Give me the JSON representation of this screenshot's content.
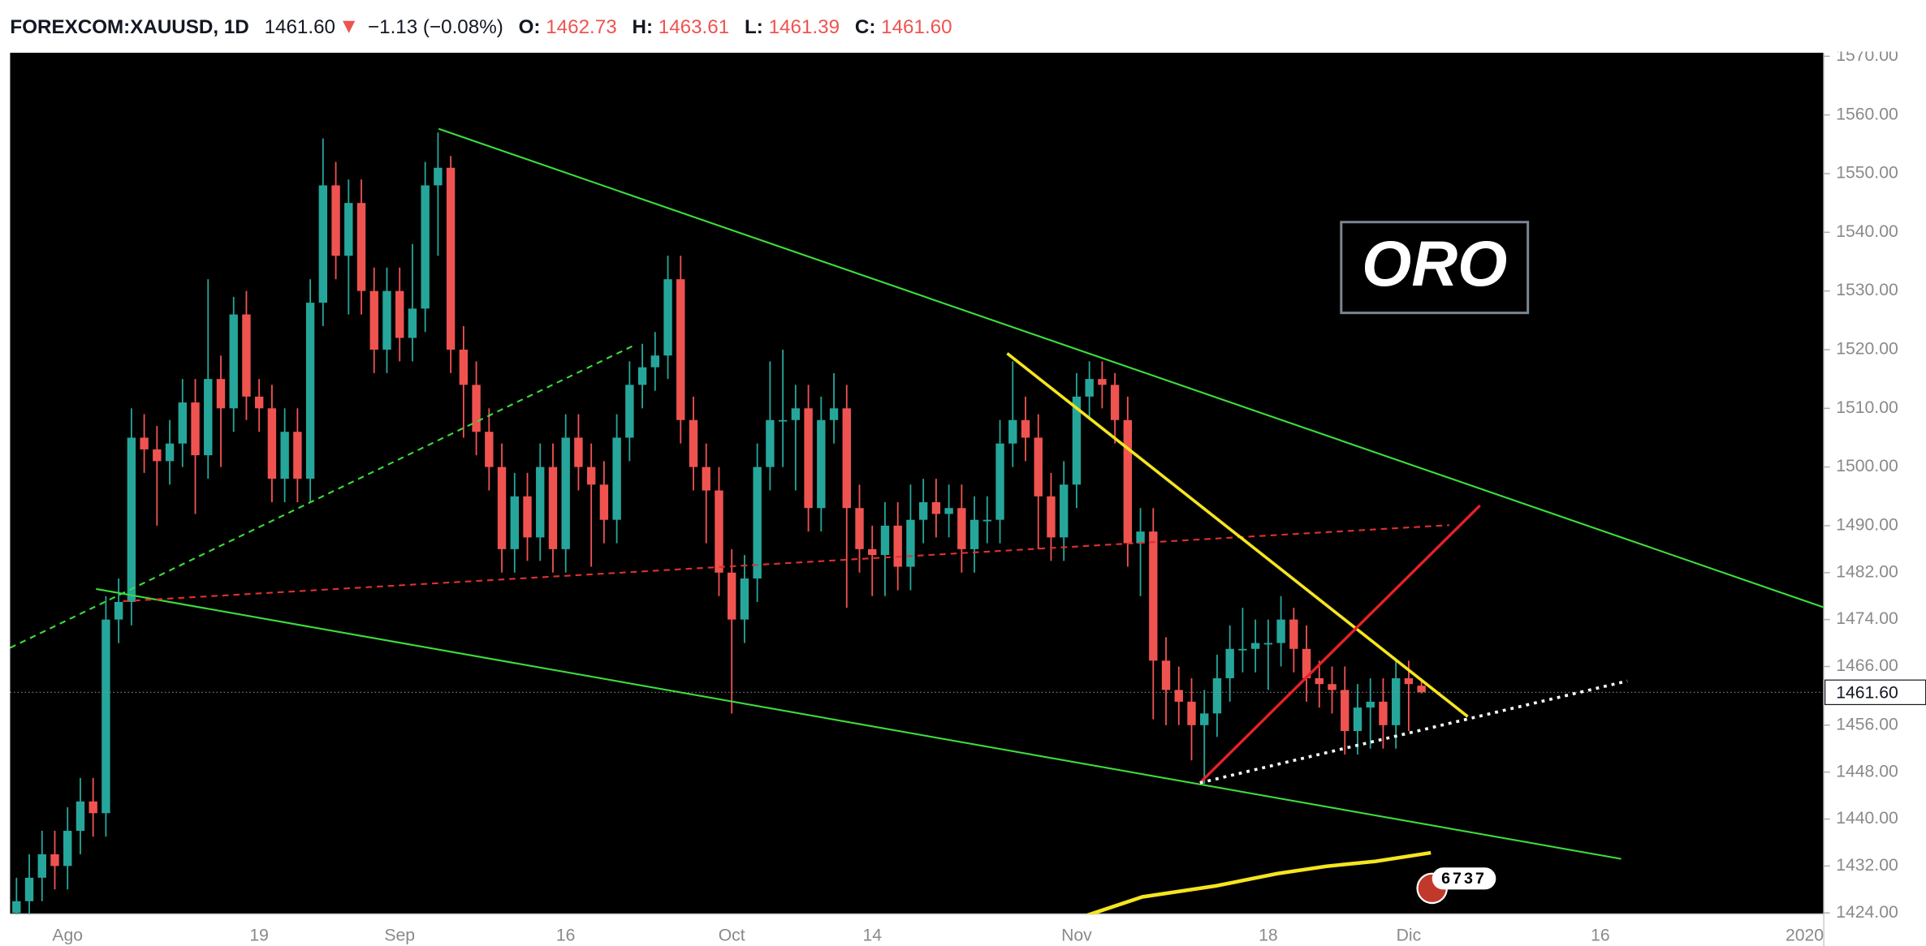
{
  "header": {
    "symbol": "FOREXCOM:XAUUSD, 1D",
    "last": "1461.60",
    "change": "−1.13 (−0.08%)",
    "open_label": "O:",
    "open": "1462.73",
    "high_label": "H:",
    "high": "1463.61",
    "low_label": "L:",
    "low": "1461.39",
    "close_label": "C:",
    "close": "1461.60"
  },
  "chart_data": {
    "type": "candlestick",
    "annotation": "ORO",
    "badge": "6737",
    "up_color": "#26a69a",
    "down_color": "#ef5350",
    "grid": false,
    "ylim": [
      1423.8,
      1570.6
    ],
    "yticks": [
      {
        "value": 1570,
        "label": "1570.00"
      },
      {
        "value": 1560,
        "label": "1560.00"
      },
      {
        "value": 1550,
        "label": "1550.00"
      },
      {
        "value": 1540,
        "label": "1540.00"
      },
      {
        "value": 1530,
        "label": "1530.00"
      },
      {
        "value": 1520,
        "label": "1520.00"
      },
      {
        "value": 1510,
        "label": "1510.00"
      },
      {
        "value": 1500,
        "label": "1500.00"
      },
      {
        "value": 1490,
        "label": "1490.00"
      },
      {
        "value": 1482,
        "label": "1482.00"
      },
      {
        "value": 1474,
        "label": "1474.00"
      },
      {
        "value": 1466,
        "label": "1466.00"
      },
      {
        "value": 1456,
        "label": "1456.00"
      },
      {
        "value": 1448,
        "label": "1448.00"
      },
      {
        "value": 1440,
        "label": "1440.00"
      },
      {
        "value": 1432,
        "label": "1432.00"
      },
      {
        "value": 1424,
        "label": "1424.00"
      }
    ],
    "categories": [
      null,
      null,
      null,
      null,
      "Ago",
      null,
      null,
      null,
      null,
      null,
      null,
      null,
      null,
      null,
      null,
      null,
      null,
      null,
      null,
      "19",
      null,
      null,
      null,
      null,
      null,
      null,
      null,
      null,
      null,
      null,
      "Sep",
      null,
      null,
      null,
      null,
      null,
      null,
      null,
      null,
      null,
      null,
      null,
      null,
      "16",
      null,
      null,
      null,
      null,
      null,
      null,
      null,
      null,
      null,
      null,
      null,
      null,
      "Oct",
      null,
      null,
      null,
      null,
      null,
      null,
      null,
      null,
      null,
      null,
      "14",
      null,
      null,
      null,
      null,
      null,
      null,
      null,
      null,
      null,
      null,
      null,
      null,
      null,
      null,
      null,
      "Nov",
      null,
      null,
      null,
      null,
      null,
      null,
      null,
      null,
      null,
      null,
      null,
      null,
      null,
      null,
      "18",
      null,
      null,
      null,
      null,
      null,
      null,
      null,
      null,
      null,
      null,
      "Dic",
      null,
      null,
      null,
      null,
      null,
      null,
      null,
      null,
      null,
      null,
      null,
      null,
      null,
      null,
      "16",
      null,
      null,
      null,
      null,
      null,
      null,
      null,
      null,
      null,
      null,
      null,
      null,
      null,
      null,
      null,
      "2020",
      null
    ],
    "open": [
      1424,
      1426,
      1430,
      1434,
      1432,
      1438,
      1443,
      1441,
      1474,
      1477,
      1505,
      1503,
      1501,
      1504,
      1511,
      1502,
      1515,
      1510,
      1526,
      1512,
      1510,
      1498,
      1506,
      1498,
      1528,
      1548,
      1536,
      1545,
      1530,
      1520,
      1530,
      1522,
      1527,
      1548,
      1551,
      1520,
      1514,
      1506,
      1500,
      1486,
      1495,
      1488,
      1500,
      1486,
      1505,
      1500,
      1497,
      1491,
      1505,
      1514,
      1517,
      1519,
      1532,
      1508,
      1500,
      1496,
      1482,
      1474,
      1481,
      1500,
      1508,
      1508,
      1510,
      1493,
      1508,
      1510,
      1493,
      1486,
      1485,
      1490,
      1483,
      1491,
      1494,
      1492,
      1493,
      1486,
      1491,
      1491,
      1504,
      1508,
      1505,
      1495,
      1488,
      1497,
      1512,
      1515,
      1514,
      1508,
      1487,
      1489,
      1467,
      1462,
      1460,
      1456,
      1458,
      1464,
      1469,
      1469,
      1470,
      1470,
      1474,
      1469,
      1464,
      1463,
      1462,
      1455,
      1459,
      1460,
      1456,
      1464,
      1462.73,
      null,
      null,
      null,
      null,
      null,
      null,
      null,
      null,
      null,
      null,
      null,
      null,
      null,
      null,
      null,
      null,
      null,
      null,
      null,
      null,
      null,
      null,
      null,
      null,
      null,
      null,
      null,
      null,
      null,
      null,
      null
    ],
    "high": [
      1430,
      1434,
      1438,
      1438,
      1442,
      1447,
      1447,
      1478,
      1481,
      1510,
      1509,
      1507,
      1508,
      1515,
      1515,
      1532,
      1519,
      1529,
      1530,
      1515,
      1514,
      1510,
      1510,
      1532,
      1556,
      1552,
      1549,
      1549,
      1534,
      1534,
      1534,
      1538,
      1552,
      1557,
      1553,
      1524,
      1518,
      1510,
      1504,
      1499,
      1499,
      1504,
      1504,
      1509,
      1509,
      1504,
      1501,
      1509,
      1518,
      1521,
      1523,
      1536,
      1536,
      1512,
      1504,
      1500,
      1486,
      1485,
      1504,
      1518,
      1520,
      1514,
      1514,
      1512,
      1516,
      1514,
      1497,
      1490,
      1494,
      1494,
      1497,
      1498,
      1498,
      1497,
      1497,
      1495,
      1495,
      1508,
      1518,
      1512,
      1509,
      1499,
      1501,
      1516,
      1518,
      1518,
      1516,
      1512,
      1493,
      1493,
      1471,
      1466,
      1464,
      1462,
      1468,
      1473,
      1476,
      1474,
      1474,
      1478,
      1476,
      1473,
      1467,
      1466,
      1466,
      1463,
      1464,
      1464,
      1467,
      1467,
      1463.61,
      null,
      null,
      null,
      null,
      null,
      null,
      null,
      null,
      null,
      null,
      null,
      null,
      null,
      null,
      null,
      null,
      null,
      null,
      null,
      null,
      null,
      null,
      null,
      null,
      null,
      null,
      null,
      null,
      null,
      null,
      null
    ],
    "low": [
      1420,
      1422,
      1426,
      1428,
      1428,
      1434,
      1437,
      1437,
      1470,
      1473,
      1499,
      1490,
      1497,
      1500,
      1492,
      1498,
      1500,
      1506,
      1508,
      1506,
      1494,
      1494,
      1494,
      1494,
      1524,
      1532,
      1526,
      1526,
      1516,
      1516,
      1518,
      1518,
      1523,
      1536,
      1516,
      1505,
      1502,
      1496,
      1482,
      1482,
      1484,
      1484,
      1482,
      1482,
      1496,
      1483,
      1487,
      1487,
      1501,
      1510,
      1513,
      1515,
      1504,
      1496,
      1487,
      1478,
      1458,
      1470,
      1477,
      1496,
      1500,
      1496,
      1489,
      1489,
      1504,
      1476,
      1482,
      1478,
      1478,
      1479,
      1479,
      1487,
      1488,
      1488,
      1482,
      1482,
      1487,
      1487,
      1500,
      1501,
      1486,
      1484,
      1484,
      1493,
      1508,
      1510,
      1504,
      1483,
      1478,
      1457,
      1456,
      1456,
      1450,
      1446,
      1454,
      1460,
      1465,
      1465,
      1462,
      1466,
      1465,
      1460,
      1459,
      1458,
      1451,
      1451,
      1452,
      1452,
      1452,
      1455,
      1461.39,
      null,
      null,
      null,
      null,
      null,
      null,
      null,
      null,
      null,
      null,
      null,
      null,
      null,
      null,
      null,
      null,
      null,
      null,
      null,
      null,
      null,
      null,
      null,
      null,
      null,
      null,
      null,
      null,
      null,
      null,
      null
    ],
    "close": [
      1426,
      1430,
      1434,
      1432,
      1438,
      1443,
      1441,
      1474,
      1477,
      1505,
      1503,
      1501,
      1504,
      1511,
      1502,
      1515,
      1510,
      1526,
      1512,
      1510,
      1498,
      1506,
      1498,
      1528,
      1548,
      1536,
      1545,
      1530,
      1520,
      1530,
      1522,
      1527,
      1548,
      1551,
      1520,
      1514,
      1506,
      1500,
      1486,
      1495,
      1488,
      1500,
      1486,
      1505,
      1500,
      1497,
      1491,
      1505,
      1514,
      1517,
      1519,
      1532,
      1508,
      1500,
      1496,
      1482,
      1474,
      1481,
      1500,
      1508,
      1508,
      1510,
      1493,
      1508,
      1510,
      1493,
      1486,
      1485,
      1490,
      1483,
      1491,
      1494,
      1492,
      1493,
      1486,
      1491,
      1491,
      1504,
      1508,
      1505,
      1495,
      1488,
      1497,
      1512,
      1515,
      1514,
      1508,
      1487,
      1489,
      1467,
      1462,
      1460,
      1456,
      1458,
      1464,
      1469,
      1469,
      1470,
      1470,
      1474,
      1469,
      1464,
      1463,
      1462,
      1455,
      1459,
      1460,
      1456,
      1464,
      1463,
      1461.6,
      null,
      null,
      null,
      null,
      null,
      null,
      null,
      null,
      null,
      null,
      null,
      null,
      null,
      null,
      null,
      null,
      null,
      null,
      null,
      null,
      null,
      null,
      null,
      null,
      null,
      null,
      null,
      null,
      null,
      null,
      null
    ]
  }
}
